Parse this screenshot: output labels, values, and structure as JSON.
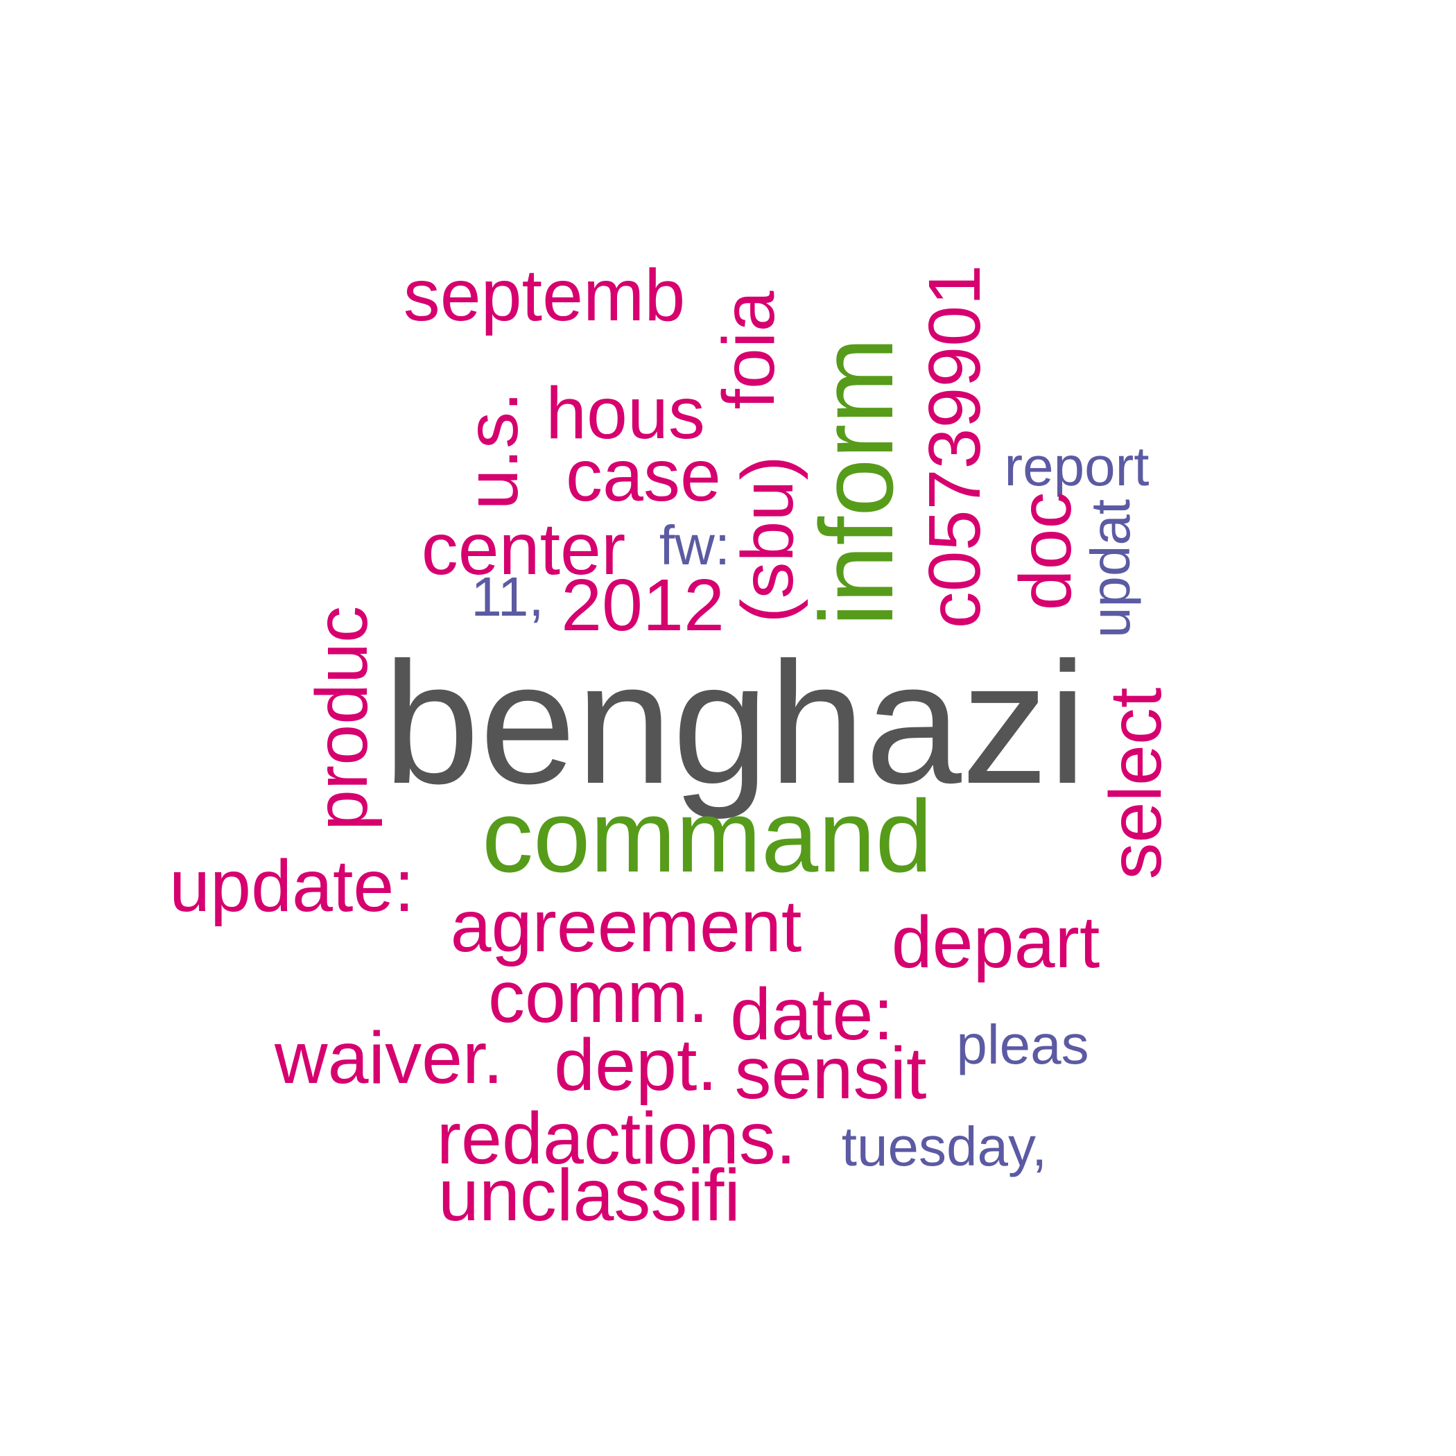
{
  "palette": {
    "dark_gray": "#555555",
    "green": "#569c1a",
    "magenta": "#d6006f",
    "purple": "#5b5aa2"
  },
  "words": [
    {
      "text": "benghazi",
      "color": "dark_gray"
    },
    {
      "text": "command",
      "color": "green"
    },
    {
      "text": "inform",
      "color": "green"
    },
    {
      "text": "septemb",
      "color": "magenta"
    },
    {
      "text": "foia",
      "color": "magenta"
    },
    {
      "text": "c05739901",
      "color": "magenta"
    },
    {
      "text": "u.s.",
      "color": "magenta"
    },
    {
      "text": "hous",
      "color": "magenta"
    },
    {
      "text": "case",
      "color": "magenta"
    },
    {
      "text": "(sbu)",
      "color": "magenta"
    },
    {
      "text": "report",
      "color": "purple"
    },
    {
      "text": "center",
      "color": "magenta"
    },
    {
      "text": "fw:",
      "color": "purple"
    },
    {
      "text": "doc",
      "color": "magenta"
    },
    {
      "text": "updat",
      "color": "purple"
    },
    {
      "text": "11,",
      "color": "purple"
    },
    {
      "text": "2012",
      "color": "magenta"
    },
    {
      "text": "produc",
      "color": "magenta"
    },
    {
      "text": "select",
      "color": "magenta"
    },
    {
      "text": "update:",
      "color": "magenta"
    },
    {
      "text": "agreement",
      "color": "magenta"
    },
    {
      "text": "depart",
      "color": "magenta"
    },
    {
      "text": "comm.",
      "color": "magenta"
    },
    {
      "text": "date:",
      "color": "magenta"
    },
    {
      "text": "pleas",
      "color": "purple"
    },
    {
      "text": "waiver.",
      "color": "magenta"
    },
    {
      "text": "dept.",
      "color": "magenta"
    },
    {
      "text": "sensit",
      "color": "magenta"
    },
    {
      "text": "redactions.",
      "color": "magenta"
    },
    {
      "text": "tuesday,",
      "color": "purple"
    },
    {
      "text": "unclassifi",
      "color": "magenta"
    }
  ]
}
